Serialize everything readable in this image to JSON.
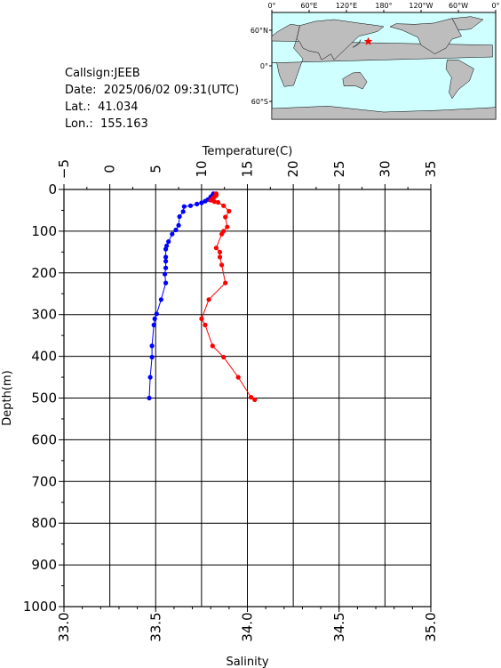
{
  "station": {
    "callsign_line": "Callsign:JEEB",
    "date_line": "Date:  2025/06/02 09:31(UTC)",
    "lat_line": "Lat.:  41.034",
    "lon_line": "Lon.:  155.163"
  },
  "map": {
    "lon_labels": [
      "0°",
      "60°E",
      "120°E",
      "180°",
      "120°W",
      "60°W",
      "0°"
    ],
    "lat_labels": [
      "60°N",
      "0°",
      "60°S"
    ],
    "station_lon": 155.163,
    "station_lat": 41.034,
    "ocean_color": "#cfffff",
    "land_color": "#bdbdbd",
    "marker_color": "#ff0000"
  },
  "chart_data": {
    "type": "line",
    "title": "",
    "ylabel": "Depth(m)",
    "ylim": [
      0,
      1000
    ],
    "yticks": [
      "0",
      "100",
      "200",
      "300",
      "400",
      "500",
      "600",
      "700",
      "800",
      "900",
      "1000"
    ],
    "top_axis": {
      "label": "Temperature(C)",
      "lim": [
        -5,
        35
      ],
      "ticks": [
        "−5",
        "0",
        "5",
        "10",
        "15",
        "20",
        "25",
        "30",
        "35"
      ]
    },
    "bottom_axis": {
      "label": "Salinity",
      "lim": [
        33.0,
        35.0
      ],
      "ticks": [
        "33.0",
        "33.5",
        "34.0",
        "34.5",
        "35.0"
      ]
    },
    "series": [
      {
        "axis": "top",
        "color": "#0000ff",
        "points": [
          [
            11.3,
            10
          ],
          [
            11.2,
            14
          ],
          [
            11.0,
            18
          ],
          [
            10.7,
            24
          ],
          [
            10.4,
            28
          ],
          [
            10.0,
            32
          ],
          [
            9.5,
            35
          ],
          [
            8.8,
            39
          ],
          [
            8.1,
            41
          ],
          [
            8.0,
            53
          ],
          [
            7.6,
            65
          ],
          [
            7.5,
            86
          ],
          [
            7.2,
            97
          ],
          [
            6.8,
            107
          ],
          [
            6.4,
            125
          ],
          [
            6.2,
            135
          ],
          [
            6.1,
            143
          ],
          [
            6.1,
            162
          ],
          [
            6.1,
            172
          ],
          [
            6.1,
            188
          ],
          [
            6.0,
            203
          ],
          [
            6.1,
            224
          ],
          [
            5.6,
            264
          ],
          [
            5.1,
            298
          ],
          [
            4.9,
            310
          ],
          [
            4.8,
            325
          ],
          [
            4.6,
            375
          ],
          [
            4.6,
            402
          ],
          [
            4.4,
            450
          ],
          [
            4.3,
            500
          ]
        ]
      },
      {
        "axis": "bottom",
        "color": "#ff0000",
        "points": [
          [
            33.83,
            10
          ],
          [
            33.83,
            14
          ],
          [
            33.82,
            18
          ],
          [
            33.81,
            22
          ],
          [
            33.8,
            26
          ],
          [
            33.82,
            29
          ],
          [
            33.84,
            31
          ],
          [
            33.87,
            39
          ],
          [
            33.9,
            52
          ],
          [
            33.88,
            66
          ],
          [
            33.89,
            90
          ],
          [
            33.87,
            100
          ],
          [
            33.86,
            107
          ],
          [
            33.83,
            140
          ],
          [
            33.85,
            150
          ],
          [
            33.85,
            162
          ],
          [
            33.86,
            181
          ],
          [
            33.88,
            224
          ],
          [
            33.79,
            264
          ],
          [
            33.75,
            310
          ],
          [
            33.77,
            325
          ],
          [
            33.81,
            375
          ],
          [
            33.87,
            402
          ],
          [
            33.95,
            450
          ],
          [
            34.02,
            498
          ],
          [
            34.04,
            504
          ]
        ]
      }
    ]
  }
}
